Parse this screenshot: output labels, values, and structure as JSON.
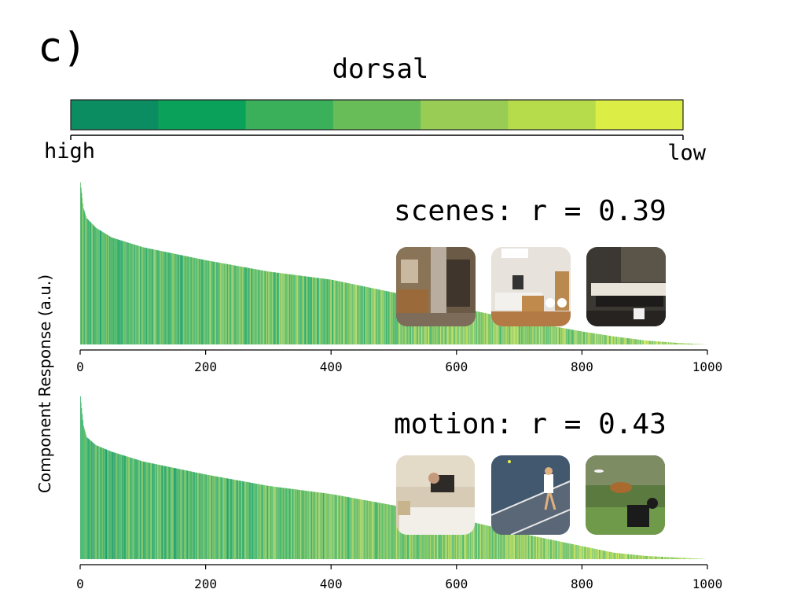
{
  "figure": {
    "panel_label": "c)",
    "y_axis_label": "Component Response (a.u.)"
  },
  "colorbar": {
    "title": "dorsal",
    "high_label": "high",
    "low_label": "low",
    "colors": [
      "#0c8c61",
      "#0aa15a",
      "#3ab05a",
      "#68bd59",
      "#98cc54",
      "#b6dc4c",
      "#dcee45"
    ]
  },
  "chart_data": [
    {
      "type": "bar",
      "name": "scenes",
      "annotation": "scenes: r = 0.39",
      "n_images": 1000,
      "xlim": [
        0,
        1000
      ],
      "x_ticks": [
        "0",
        "200",
        "400",
        "600",
        "800",
        "1000"
      ],
      "xlabel": "",
      "y_ticks_shown": false,
      "curve_shape": "monotonically decreasing sorted response",
      "correlation_r": 0.39,
      "response_profile": {
        "rank": [
          0,
          5,
          10,
          25,
          50,
          100,
          200,
          300,
          400,
          500,
          600,
          700,
          800,
          850,
          900,
          950,
          1000
        ],
        "value": [
          1.0,
          0.84,
          0.78,
          0.72,
          0.66,
          0.6,
          0.52,
          0.45,
          0.4,
          0.32,
          0.23,
          0.15,
          0.08,
          0.05,
          0.025,
          0.01,
          0.0
        ]
      },
      "thumbnails": [
        "open doorway interior",
        "white kitchen",
        "restaurant table"
      ]
    },
    {
      "type": "bar",
      "name": "motion",
      "annotation": "motion: r = 0.43",
      "n_images": 1000,
      "xlim": [
        0,
        1000
      ],
      "x_ticks": [
        "0",
        "200",
        "400",
        "600",
        "800",
        "1000"
      ],
      "xlabel": "",
      "y_ticks_shown": false,
      "curve_shape": "monotonically decreasing sorted response",
      "correlation_r": 0.43,
      "response_profile": {
        "rank": [
          0,
          5,
          10,
          25,
          50,
          100,
          200,
          300,
          400,
          500,
          600,
          700,
          800,
          850,
          900,
          950,
          1000
        ],
        "value": [
          1.0,
          0.82,
          0.75,
          0.7,
          0.66,
          0.6,
          0.52,
          0.45,
          0.4,
          0.33,
          0.25,
          0.16,
          0.08,
          0.04,
          0.02,
          0.01,
          0.0
        ]
      },
      "thumbnails": [
        "person jumping on bed",
        "tennis player",
        "dog catching frisbee"
      ]
    }
  ]
}
